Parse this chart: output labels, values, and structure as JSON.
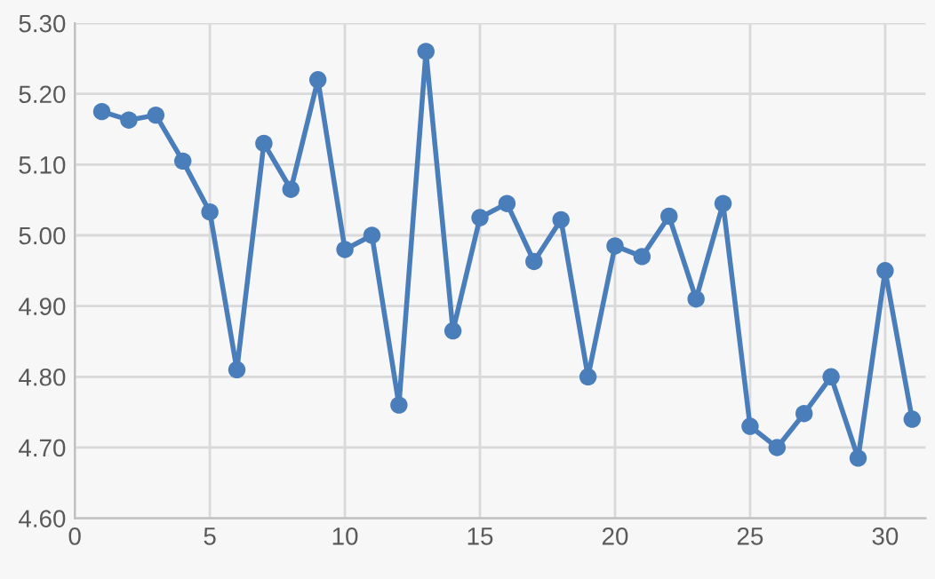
{
  "chart_data": {
    "type": "line",
    "x": [
      1,
      2,
      3,
      4,
      5,
      6,
      7,
      8,
      9,
      10,
      11,
      12,
      13,
      14,
      15,
      16,
      17,
      18,
      19,
      20,
      21,
      22,
      23,
      24,
      25,
      26,
      27,
      28,
      29,
      30,
      31
    ],
    "series": [
      {
        "color": "#4a7ebb",
        "values": [
          5.175,
          5.163,
          5.17,
          5.105,
          5.033,
          4.81,
          5.13,
          5.065,
          5.22,
          4.98,
          5.0,
          4.76,
          5.26,
          4.865,
          5.025,
          5.045,
          4.963,
          5.022,
          4.8,
          4.985,
          4.97,
          5.027,
          4.91,
          5.045,
          4.73,
          4.7,
          4.748,
          4.8,
          4.685,
          4.95,
          4.74
        ]
      }
    ],
    "xlim": [
      0,
      31.5
    ],
    "xticks": [
      0,
      5,
      10,
      15,
      20,
      25,
      30
    ],
    "ylim": [
      4.6,
      5.3
    ],
    "yticks": [
      {
        "value": 4.6,
        "label": "4.60"
      },
      {
        "value": 4.7,
        "label": "4.70"
      },
      {
        "value": 4.8,
        "label": "4.80"
      },
      {
        "value": 4.9,
        "label": "4.90"
      },
      {
        "value": 5.0,
        "label": "5.00"
      },
      {
        "value": 5.1,
        "label": "5.10"
      },
      {
        "value": 5.2,
        "label": "5.20"
      },
      {
        "value": 5.3,
        "label": "5.30"
      }
    ],
    "grid": true,
    "marker": "circle",
    "line_style": "solid",
    "legend": false
  }
}
